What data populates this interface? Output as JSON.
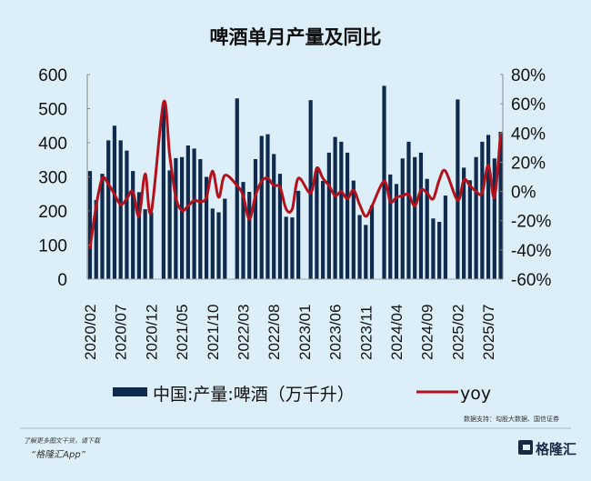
{
  "chart_data": {
    "type": "bar+line",
    "title": "啤酒单月产量及同比",
    "x": [
      "2020/02",
      "2020/03",
      "2020/04",
      "2020/05",
      "2020/06",
      "2020/07",
      "2020/08",
      "2020/09",
      "2020/10",
      "2020/11",
      "2020/12",
      "2021/01",
      "2021/02",
      "2021/03",
      "2021/04",
      "2021/05",
      "2021/06",
      "2021/07",
      "2021/08",
      "2021/09",
      "2021/10",
      "2021/11",
      "2021/12",
      "2022/01",
      "2022/02",
      "2022/03",
      "2022/04",
      "2022/05",
      "2022/06",
      "2022/07",
      "2022/08",
      "2022/09",
      "2022/10",
      "2022/11",
      "2022/12",
      "2023/01",
      "2023/02",
      "2023/03",
      "2023/04",
      "2023/05",
      "2023/06",
      "2023/07",
      "2023/08",
      "2023/09",
      "2023/10",
      "2023/11",
      "2023/12",
      "2024/01",
      "2024/02",
      "2024/03",
      "2024/04",
      "2024/05",
      "2024/06",
      "2024/07",
      "2024/08",
      "2024/09",
      "2024/10",
      "2024/11",
      "2024/12",
      "2025/01",
      "2025/02",
      "2025/03",
      "2025/04",
      "2025/05",
      "2025/06",
      "2025/07",
      "2025/08",
      "2025/09"
    ],
    "xtick_labels": [
      "2020/02",
      "2020/07",
      "2020/12",
      "2021/05",
      "2021/10",
      "2022/03",
      "2022/08",
      "2023/01",
      "2023/06",
      "2023/11",
      "2024/04",
      "2024/09",
      "2025/02",
      "2025/07"
    ],
    "series": [
      {
        "name": "中国:产量:啤酒（万千升）",
        "type": "bar",
        "axis": "left",
        "color": "#0f2a4d",
        "values": [
          317,
          232,
          309,
          407,
          450,
          407,
          377,
          317,
          255,
          205,
          196,
          null,
          510,
          319,
          355,
          358,
          392,
          383,
          352,
          300,
          207,
          196,
          236,
          null,
          530,
          285,
          256,
          352,
          420,
          425,
          367,
          309,
          183,
          181,
          259,
          null,
          525,
          320,
          288,
          371,
          417,
          403,
          371,
          289,
          188,
          159,
          216,
          null,
          567,
          307,
          279,
          354,
          403,
          358,
          371,
          294,
          178,
          168,
          245,
          null,
          527,
          327,
          290,
          358,
          403,
          423,
          354,
          432
        ]
      },
      {
        "name": "yoy",
        "type": "line",
        "axis": "right",
        "color": "#b3121c",
        "unit": "%",
        "values": [
          -39,
          -10,
          9,
          5,
          -2,
          -9,
          -5,
          0,
          -17,
          12,
          -14,
          null,
          61,
          25,
          -4,
          -13,
          -10,
          -6,
          -7,
          -4,
          14,
          -4,
          11,
          null,
          4,
          -3,
          -19,
          -3,
          7,
          9,
          4,
          3,
          -12,
          -12,
          9,
          null,
          -1,
          16,
          9,
          4,
          -3,
          0,
          -5,
          1,
          -9,
          -17,
          -10,
          null,
          7,
          -7,
          -4,
          -3,
          -2,
          -10,
          1,
          -1,
          -5,
          8,
          14,
          null,
          -6,
          8,
          4,
          0,
          -1,
          18,
          -4,
          40
        ]
      }
    ],
    "left_axis": {
      "range": [
        0,
        600
      ],
      "ticks": [
        "0",
        "100",
        "200",
        "300",
        "400",
        "500",
        "600"
      ]
    },
    "right_axis": {
      "range": [
        -60,
        80
      ],
      "ticks": [
        "-60%",
        "-40%",
        "-20%",
        "0%",
        "20%",
        "40%",
        "60%",
        "80%"
      ]
    },
    "grid": false,
    "legend_position": "bottom"
  },
  "legend": {
    "bar_label": "中国:产量:啤酒（万千升）",
    "line_label": "yoy"
  },
  "source": "数据支持：勾股大数据、国信证券",
  "footer": {
    "line1": "了解更多图文干货，请下载",
    "line2": "“格隆汇App”",
    "logo_text": "格隆汇"
  },
  "colors": {
    "background": "#dcEFF9",
    "bar": "#0f2a4d",
    "line": "#b3121c"
  }
}
